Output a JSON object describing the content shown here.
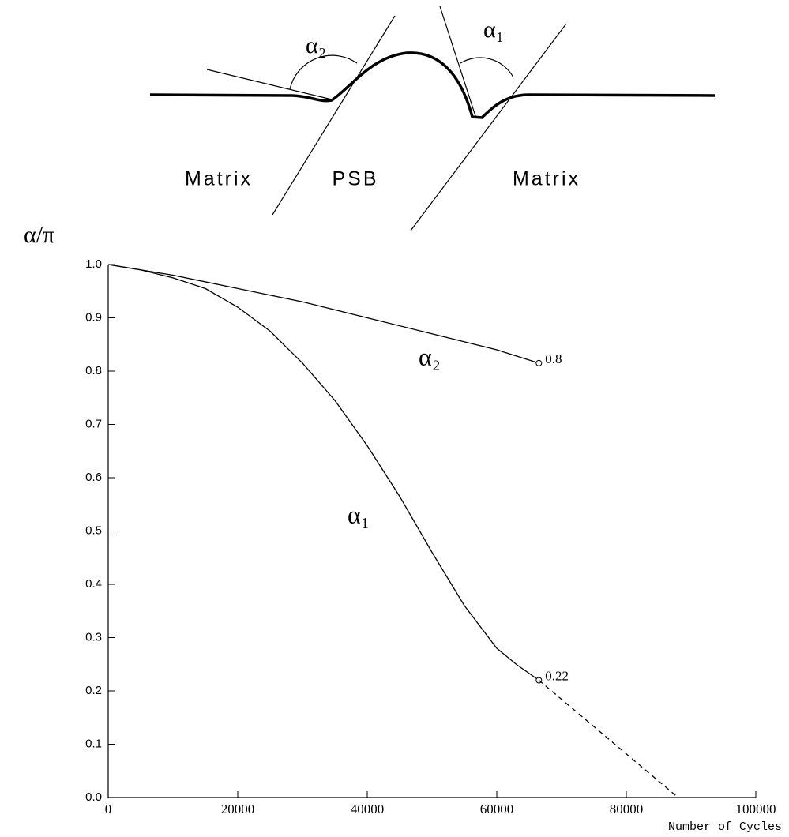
{
  "diagram": {
    "angle_labels": [
      "α₂",
      "α₁"
    ],
    "region_labels": [
      "Matrix",
      "PSB",
      "Matrix"
    ]
  },
  "chart_data": {
    "type": "line",
    "ylabel": "α/π",
    "xlabel": "Number of Cycles",
    "xlim": [
      0,
      100000
    ],
    "xticks": [
      0,
      20000,
      40000,
      60000,
      80000,
      100000
    ],
    "ylim": [
      0,
      1
    ],
    "yticks": [
      {
        "value": 0,
        "label": "0.0"
      },
      {
        "value": 0.1,
        "label": "0.1"
      },
      {
        "value": 0.2,
        "label": "0.2"
      },
      {
        "value": 0.3,
        "label": "0.3"
      },
      {
        "value": 0.4,
        "label": "0.4"
      },
      {
        "value": 0.5,
        "label": "0.5"
      },
      {
        "value": 0.6,
        "label": "0.6"
      },
      {
        "value": 0.7,
        "label": "0.7"
      },
      {
        "value": 0.8,
        "label": "0.8"
      },
      {
        "value": 0.9,
        "label": "0.9"
      },
      {
        "value": 1,
        "label": "1.0"
      }
    ],
    "grid": false,
    "series": [
      {
        "name": "α₂",
        "color": "#000000",
        "style": "solid",
        "x": [
          0,
          10000,
          20000,
          30000,
          40000,
          50000,
          60000,
          66500
        ],
        "values": [
          1.0,
          0.98,
          0.955,
          0.93,
          0.9,
          0.87,
          0.84,
          0.815
        ],
        "value_labels": [
          null,
          null,
          null,
          null,
          null,
          null,
          null,
          "0.8"
        ]
      },
      {
        "name": "α₁",
        "color": "#000000",
        "style": "solid",
        "x": [
          0,
          5000,
          10000,
          15000,
          20000,
          25000,
          30000,
          35000,
          40000,
          45000,
          50000,
          55000,
          60000,
          63000,
          66500
        ],
        "values": [
          1.0,
          0.99,
          0.975,
          0.955,
          0.92,
          0.875,
          0.815,
          0.745,
          0.66,
          0.565,
          0.46,
          0.36,
          0.28,
          0.25,
          0.22
        ],
        "value_labels": [
          null,
          null,
          null,
          null,
          null,
          null,
          null,
          null,
          null,
          null,
          null,
          null,
          null,
          null,
          "0.22"
        ]
      },
      {
        "color": "#000000",
        "style": "dashed",
        "x": [
          66500,
          88000
        ],
        "values": [
          0.22,
          0
        ]
      }
    ]
  }
}
